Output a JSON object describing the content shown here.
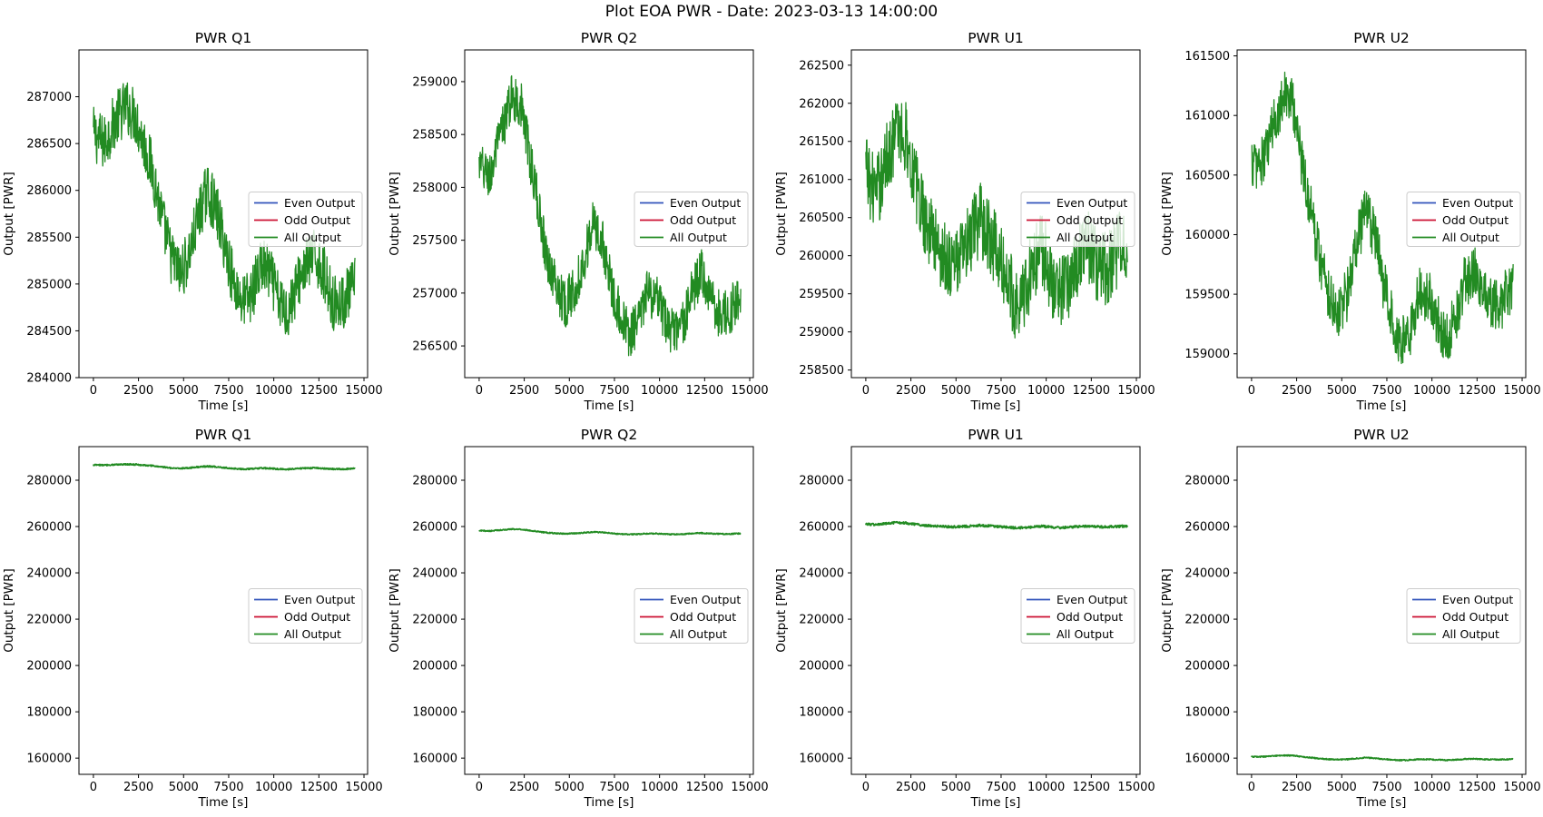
{
  "figure": {
    "suptitle": "Plot EOA PWR - Date: 2023-03-13 14:00:00"
  },
  "legend_labels": [
    "Even Output",
    "Odd Output",
    "All Output"
  ],
  "colors": {
    "even": "#3355bb",
    "odd": "#cc1133",
    "all": "#228b22"
  },
  "chart_data": [
    {
      "type": "line",
      "title": "PWR Q1",
      "xlabel": "Time [s]",
      "ylabel": "Output [PWR]",
      "xlim": [
        -800,
        15200
      ],
      "ylim": [
        284000,
        287500
      ],
      "xticks": [
        0,
        2500,
        5000,
        7500,
        10000,
        12500,
        15000
      ],
      "yticks": [
        284000,
        284500,
        285000,
        285500,
        286000,
        286500,
        287000
      ],
      "legend": "center-right",
      "grid": false,
      "noise": 600,
      "series": [
        {
          "name": "All Output",
          "x": [
            0,
            600,
            1200,
            1800,
            2300,
            2800,
            3300,
            3800,
            4300,
            4800,
            5300,
            5800,
            6300,
            6800,
            7300,
            7800,
            8300,
            8800,
            9300,
            9800,
            10300,
            10800,
            11300,
            11800,
            12300,
            12800,
            13300,
            13800,
            14500
          ],
          "y": [
            286600,
            286500,
            286750,
            286900,
            286800,
            286500,
            286200,
            285700,
            285300,
            285100,
            285300,
            285700,
            286000,
            285800,
            285400,
            285000,
            284800,
            284900,
            285200,
            285100,
            284800,
            284700,
            285000,
            285200,
            285300,
            285100,
            284800,
            284800,
            285000
          ]
        }
      ]
    },
    {
      "type": "line",
      "title": "PWR Q2",
      "xlabel": "Time [s]",
      "ylabel": "Output [PWR]",
      "xlim": [
        -800,
        15200
      ],
      "ylim": [
        256200,
        259300
      ],
      "xticks": [
        0,
        2500,
        5000,
        7500,
        10000,
        12500,
        15000
      ],
      "yticks": [
        256500,
        257000,
        257500,
        258000,
        258500,
        259000
      ],
      "legend": "center-right",
      "grid": false,
      "noise": 450,
      "series": [
        {
          "name": "All Output",
          "x": [
            0,
            600,
            1200,
            1800,
            2300,
            2800,
            3300,
            3800,
            4300,
            4800,
            5300,
            5800,
            6300,
            6800,
            7300,
            7800,
            8300,
            8800,
            9300,
            9800,
            10300,
            10800,
            11300,
            11800,
            12300,
            12800,
            13300,
            13800,
            14500
          ],
          "y": [
            258200,
            258100,
            258500,
            258850,
            258800,
            258300,
            257800,
            257300,
            257050,
            256900,
            257050,
            257300,
            257650,
            257500,
            257100,
            256800,
            256600,
            256700,
            257000,
            256950,
            256750,
            256600,
            256700,
            257000,
            257200,
            257000,
            256800,
            256800,
            257000
          ]
        }
      ]
    },
    {
      "type": "line",
      "title": "PWR U1",
      "xlabel": "Time [s]",
      "ylabel": "Output [PWR]",
      "xlim": [
        -800,
        15200
      ],
      "ylim": [
        258400,
        262700
      ],
      "xticks": [
        0,
        2500,
        5000,
        7500,
        10000,
        12500,
        15000
      ],
      "yticks": [
        258500,
        259000,
        259500,
        260000,
        260500,
        261000,
        261500,
        262000,
        262500
      ],
      "legend": "center-right",
      "grid": false,
      "noise": 1000,
      "series": [
        {
          "name": "All Output",
          "x": [
            0,
            600,
            1200,
            1800,
            2300,
            2800,
            3300,
            3800,
            4300,
            4800,
            5300,
            5800,
            6300,
            6800,
            7300,
            7800,
            8300,
            8800,
            9300,
            9800,
            10300,
            10800,
            11300,
            11800,
            12300,
            12800,
            13300,
            13800,
            14500
          ],
          "y": [
            261100,
            260800,
            261300,
            261700,
            261500,
            260900,
            260500,
            260200,
            260000,
            259900,
            260000,
            260200,
            260500,
            260300,
            260000,
            259700,
            259400,
            259500,
            259900,
            260100,
            259700,
            259500,
            259700,
            260000,
            260100,
            259900,
            259800,
            260000,
            260200
          ]
        }
      ]
    },
    {
      "type": "line",
      "title": "PWR U2",
      "xlabel": "Time [s]",
      "ylabel": "Output [PWR]",
      "xlim": [
        -800,
        15200
      ],
      "ylim": [
        158800,
        161550
      ],
      "xticks": [
        0,
        2500,
        5000,
        7500,
        10000,
        12500,
        15000
      ],
      "yticks": [
        159000,
        159500,
        160000,
        160500,
        161000,
        161500
      ],
      "legend": "center-right",
      "grid": false,
      "noise": 450,
      "series": [
        {
          "name": "All Output",
          "x": [
            0,
            600,
            1200,
            1800,
            2300,
            2800,
            3300,
            3800,
            4300,
            4800,
            5300,
            5800,
            6300,
            6800,
            7300,
            7800,
            8300,
            8800,
            9300,
            9800,
            10300,
            10800,
            11300,
            11800,
            12300,
            12800,
            13300,
            13800,
            14500
          ],
          "y": [
            160600,
            160600,
            160900,
            161200,
            161100,
            160600,
            160200,
            159800,
            159500,
            159350,
            159500,
            159900,
            160200,
            160000,
            159600,
            159300,
            159100,
            159200,
            159500,
            159500,
            159300,
            159100,
            159300,
            159600,
            159700,
            159500,
            159400,
            159400,
            159600
          ]
        }
      ]
    },
    {
      "type": "line",
      "title": "PWR Q1",
      "xlabel": "Time [s]",
      "ylabel": "Output [PWR]",
      "xlim": [
        -800,
        15200
      ],
      "ylim": [
        153000,
        294500
      ],
      "xticks": [
        0,
        2500,
        5000,
        7500,
        10000,
        12500,
        15000
      ],
      "yticks": [
        160000,
        180000,
        200000,
        220000,
        240000,
        260000,
        280000
      ],
      "legend": "center-right",
      "grid": false,
      "noise": 600,
      "series": [
        {
          "name": "All Output",
          "x": [
            0,
            600,
            1200,
            1800,
            2300,
            2800,
            3300,
            3800,
            4300,
            4800,
            5300,
            5800,
            6300,
            6800,
            7300,
            7800,
            8300,
            8800,
            9300,
            9800,
            10300,
            10800,
            11300,
            11800,
            12300,
            12800,
            13300,
            13800,
            14500
          ],
          "y": [
            286600,
            286500,
            286750,
            286900,
            286800,
            286500,
            286200,
            285700,
            285300,
            285100,
            285300,
            285700,
            286000,
            285800,
            285400,
            285000,
            284800,
            284900,
            285200,
            285100,
            284800,
            284700,
            285000,
            285200,
            285300,
            285100,
            284800,
            284800,
            285000
          ]
        }
      ]
    },
    {
      "type": "line",
      "title": "PWR Q2",
      "xlabel": "Time [s]",
      "ylabel": "Output [PWR]",
      "xlim": [
        -800,
        15200
      ],
      "ylim": [
        153000,
        294500
      ],
      "xticks": [
        0,
        2500,
        5000,
        7500,
        10000,
        12500,
        15000
      ],
      "yticks": [
        160000,
        180000,
        200000,
        220000,
        240000,
        260000,
        280000
      ],
      "legend": "center-right",
      "grid": false,
      "noise": 450,
      "series": [
        {
          "name": "All Output",
          "x": [
            0,
            600,
            1200,
            1800,
            2300,
            2800,
            3300,
            3800,
            4300,
            4800,
            5300,
            5800,
            6300,
            6800,
            7300,
            7800,
            8300,
            8800,
            9300,
            9800,
            10300,
            10800,
            11300,
            11800,
            12300,
            12800,
            13300,
            13800,
            14500
          ],
          "y": [
            258200,
            258100,
            258500,
            258850,
            258800,
            258300,
            257800,
            257300,
            257050,
            256900,
            257050,
            257300,
            257650,
            257500,
            257100,
            256800,
            256600,
            256700,
            257000,
            256950,
            256750,
            256600,
            256700,
            257000,
            257200,
            257000,
            256800,
            256800,
            257000
          ]
        }
      ]
    },
    {
      "type": "line",
      "title": "PWR U1",
      "xlabel": "Time [s]",
      "ylabel": "Output [PWR]",
      "xlim": [
        -800,
        15200
      ],
      "ylim": [
        153000,
        294500
      ],
      "xticks": [
        0,
        2500,
        5000,
        7500,
        10000,
        12500,
        15000
      ],
      "yticks": [
        160000,
        180000,
        200000,
        220000,
        240000,
        260000,
        280000
      ],
      "legend": "center-right",
      "grid": false,
      "noise": 1000,
      "series": [
        {
          "name": "All Output",
          "x": [
            0,
            600,
            1200,
            1800,
            2300,
            2800,
            3300,
            3800,
            4300,
            4800,
            5300,
            5800,
            6300,
            6800,
            7300,
            7800,
            8300,
            8800,
            9300,
            9800,
            10300,
            10800,
            11300,
            11800,
            12300,
            12800,
            13300,
            13800,
            14500
          ],
          "y": [
            261100,
            260800,
            261300,
            261700,
            261500,
            260900,
            260500,
            260200,
            260000,
            259900,
            260000,
            260200,
            260500,
            260300,
            260000,
            259700,
            259400,
            259500,
            259900,
            260100,
            259700,
            259500,
            259700,
            260000,
            260100,
            259900,
            259800,
            260000,
            260200
          ]
        }
      ]
    },
    {
      "type": "line",
      "title": "PWR U2",
      "xlabel": "Time [s]",
      "ylabel": "Output [PWR]",
      "xlim": [
        -800,
        15200
      ],
      "ylim": [
        153000,
        294500
      ],
      "xticks": [
        0,
        2500,
        5000,
        7500,
        10000,
        12500,
        15000
      ],
      "yticks": [
        160000,
        180000,
        200000,
        220000,
        240000,
        260000,
        280000
      ],
      "legend": "center-right",
      "grid": false,
      "noise": 450,
      "series": [
        {
          "name": "All Output",
          "x": [
            0,
            600,
            1200,
            1800,
            2300,
            2800,
            3300,
            3800,
            4300,
            4800,
            5300,
            5800,
            6300,
            6800,
            7300,
            7800,
            8300,
            8800,
            9300,
            9800,
            10300,
            10800,
            11300,
            11800,
            12300,
            12800,
            13300,
            13800,
            14500
          ],
          "y": [
            160600,
            160600,
            160900,
            161200,
            161100,
            160600,
            160200,
            159800,
            159500,
            159350,
            159500,
            159900,
            160200,
            160000,
            159600,
            159300,
            159100,
            159200,
            159500,
            159500,
            159300,
            159100,
            159300,
            159600,
            159700,
            159500,
            159400,
            159400,
            159600
          ]
        }
      ]
    }
  ]
}
